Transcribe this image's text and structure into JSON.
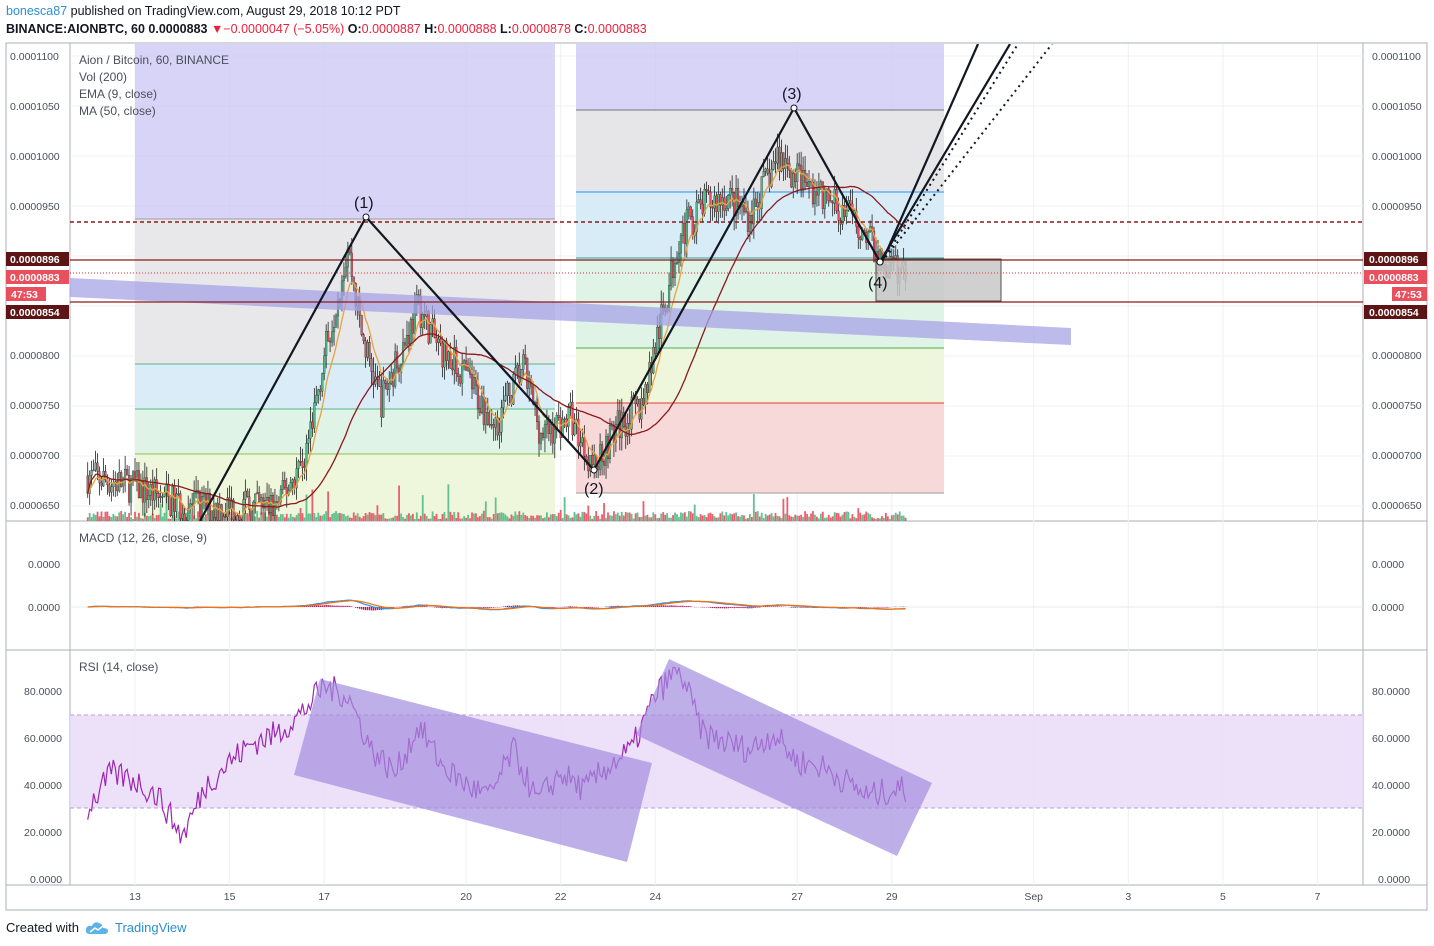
{
  "header": {
    "author": "bonesca87",
    "published": " published on TradingView.com, August 29, 2018 10:12 PDT",
    "symbol": "BINANCE:AIONBTC, 60",
    "last": "0.0000883",
    "change": "−0.0000047 (−5.05%)",
    "o_label": "O:",
    "o": "0.0000887",
    "h_label": "H:",
    "h": "0.0000888",
    "l_label": "L:",
    "l": "0.0000878",
    "c_label": "C:",
    "c": "0.0000883"
  },
  "legend": [
    "Aion / Bitcoin, 60, BINANCE",
    "Vol (200)",
    "EMA (9, close)",
    "MA (50, close)"
  ],
  "price_axis": {
    "ticks": [
      "0.0001100",
      "0.0001050",
      "0.0001000",
      "0.0000950",
      "0.0000800",
      "0.0000750",
      "0.0000700",
      "0.0000650"
    ],
    "levels": [
      "0.0000896",
      "0.0000883",
      "47:53",
      "0.0000854"
    ]
  },
  "wave_labels": [
    "(1)",
    "(2)",
    "(3)",
    "(4)"
  ],
  "macd": {
    "title": "MACD (12, 26, close, 9)",
    "ticks": [
      "0.0000",
      "0.0000"
    ]
  },
  "rsi": {
    "title": "RSI (14, close)",
    "ticks": [
      "80.0000",
      "60.0000",
      "40.0000",
      "20.0000",
      "0.0000"
    ]
  },
  "time_axis": [
    "13",
    "15",
    "17",
    "20",
    "22",
    "24",
    "27",
    "29",
    "Sep",
    "3",
    "5",
    "7"
  ],
  "footer": {
    "created": "Created with",
    "brand": "TradingView"
  },
  "colors": {
    "up": "#53b987",
    "down": "#eb4d5c",
    "ema": "#e8a33e",
    "ma": "#8b1a1a",
    "macd": "#2196f3",
    "signal": "#ff6d00",
    "rsi": "#9c27b0",
    "fib_box": "#c9c6f5",
    "rsi_channel": "#a48dde"
  },
  "chart_data": {
    "type": "candlestick",
    "pair": "AION/BTC",
    "timeframe": "60",
    "x": [
      "13",
      "15",
      "17",
      "20",
      "22",
      "24",
      "27",
      "29",
      "Sep",
      "3",
      "5",
      "7"
    ],
    "ylim": [
      6.35e-05,
      0.0001112
    ],
    "close_path": [
      [
        12,
        6.8e-05
      ],
      [
        13,
        6.7e-05
      ],
      [
        14,
        6.5e-05
      ],
      [
        15,
        6.48e-05
      ],
      [
        16,
        6.5e-05
      ],
      [
        16.6,
        7e-05
      ],
      [
        17,
        8e-05
      ],
      [
        17.5,
        9.1e-05
      ],
      [
        17.8,
        8.2e-05
      ],
      [
        18.2,
        7.55e-05
      ],
      [
        19,
        8.5e-05
      ],
      [
        19.4,
        8.1e-05
      ],
      [
        20,
        7.8e-05
      ],
      [
        20.6,
        7.3e-05
      ],
      [
        21.2,
        7.9e-05
      ],
      [
        21.6,
        7.2e-05
      ],
      [
        22.2,
        7.4e-05
      ],
      [
        22.7,
        6.9e-05
      ],
      [
        23.2,
        7.3e-05
      ],
      [
        23.7,
        7.5e-05
      ],
      [
        24.2,
        8.5e-05
      ],
      [
        24.5,
        9.2e-05
      ],
      [
        25,
        9.5e-05
      ],
      [
        25.5,
        9.6e-05
      ],
      [
        26,
        9.4e-05
      ],
      [
        26.6,
        0.0001
      ],
      [
        27,
        9.8e-05
      ],
      [
        27.5,
        9.6e-05
      ],
      [
        28,
        9.45e-05
      ],
      [
        28.5,
        9.2e-05
      ],
      [
        28.8,
        8.9e-05
      ],
      [
        29.3,
        8.83e-05
      ]
    ],
    "levels": [
      {
        "name": "resistance-dashed",
        "value": 9.34e-05
      },
      {
        "name": "box-top",
        "value": 8.96e-05
      },
      {
        "name": "last-price",
        "value": 8.83e-05
      },
      {
        "name": "box-bottom",
        "value": 8.54e-05
      }
    ],
    "waves": [
      {
        "label": "(1)",
        "x": 17.9,
        "y": 9.38e-05
      },
      {
        "label": "(2)",
        "x": 22.7,
        "y": 6.82e-05
      },
      {
        "label": "(3)",
        "x": 26.9,
        "y": 0.0001048
      },
      {
        "label": "(4)",
        "x": 28.6,
        "y": 8.92e-05
      }
    ],
    "rsi_levels": [
      70,
      30
    ],
    "rsi_ylim": [
      0,
      90
    ],
    "rsi_path": [
      [
        12,
        30
      ],
      [
        12.5,
        45
      ],
      [
        13,
        42
      ],
      [
        13.5,
        35
      ],
      [
        14,
        18
      ],
      [
        14.5,
        40
      ],
      [
        15,
        50
      ],
      [
        15.5,
        58
      ],
      [
        16,
        62
      ],
      [
        16.5,
        70
      ],
      [
        17,
        82
      ],
      [
        17.5,
        78
      ],
      [
        18,
        55
      ],
      [
        18.5,
        45
      ],
      [
        19,
        65
      ],
      [
        19.5,
        48
      ],
      [
        20,
        40
      ],
      [
        20.5,
        35
      ],
      [
        21,
        55
      ],
      [
        21.5,
        33
      ],
      [
        22,
        45
      ],
      [
        22.5,
        38
      ],
      [
        23,
        48
      ],
      [
        23.5,
        55
      ],
      [
        24,
        78
      ],
      [
        24.5,
        90
      ],
      [
        25,
        62
      ],
      [
        25.5,
        58
      ],
      [
        26,
        55
      ],
      [
        26.5,
        62
      ],
      [
        27,
        50
      ],
      [
        27.5,
        48
      ],
      [
        28,
        42
      ],
      [
        28.5,
        35
      ],
      [
        29,
        38
      ]
    ]
  }
}
